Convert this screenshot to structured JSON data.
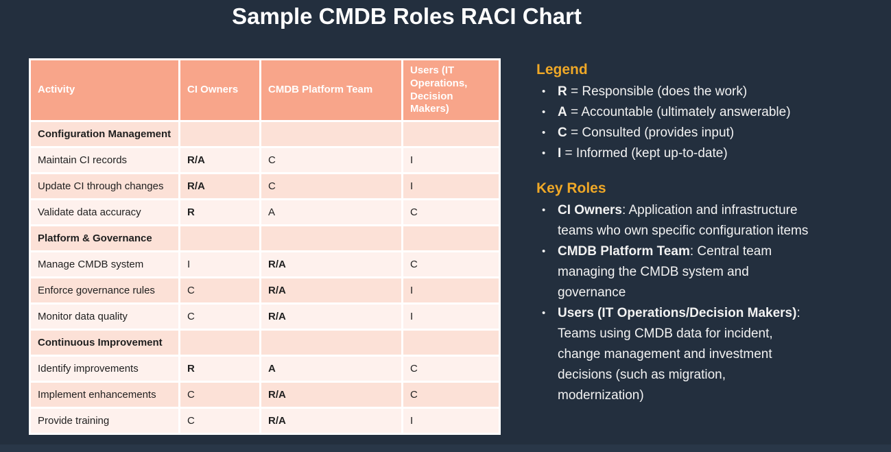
{
  "title": "Sample CMDB Roles RACI Chart",
  "colors": {
    "background": "#232f3e",
    "table_header_bg": "#f8a58a",
    "row_dark": "#fce1d7",
    "row_light": "#fef1ed",
    "table_border": "#ffffff",
    "header_text": "#ffffff",
    "body_text": "#1f1f1f",
    "accent_heading": "#efa827",
    "panel_text": "#f2f2f2"
  },
  "table": {
    "headers": [
      "Activity",
      "CI Owners",
      "CMDB Platform Team",
      "Users (IT Operations, Decision Makers)"
    ],
    "rows": [
      {
        "activity": "Configuration Management",
        "section": true,
        "cells": [
          {
            "text": "",
            "bold": false
          },
          {
            "text": "",
            "bold": false
          },
          {
            "text": "",
            "bold": false
          }
        ]
      },
      {
        "activity": "Maintain CI records",
        "section": false,
        "cells": [
          {
            "text": "R/A",
            "bold": true
          },
          {
            "text": "C",
            "bold": false
          },
          {
            "text": "I",
            "bold": false
          }
        ]
      },
      {
        "activity": "Update CI through changes",
        "section": false,
        "cells": [
          {
            "text": "R/A",
            "bold": true
          },
          {
            "text": "C",
            "bold": false
          },
          {
            "text": "I",
            "bold": false
          }
        ]
      },
      {
        "activity": "Validate data accuracy",
        "section": false,
        "cells": [
          {
            "text": "R",
            "bold": true
          },
          {
            "text": "A",
            "bold": false
          },
          {
            "text": "C",
            "bold": false
          }
        ]
      },
      {
        "activity": "Platform & Governance",
        "section": true,
        "cells": [
          {
            "text": "",
            "bold": false
          },
          {
            "text": "",
            "bold": false
          },
          {
            "text": "",
            "bold": false
          }
        ]
      },
      {
        "activity": "Manage CMDB system",
        "section": false,
        "cells": [
          {
            "text": "I",
            "bold": false
          },
          {
            "text": "R/A",
            "bold": true
          },
          {
            "text": "C",
            "bold": false
          }
        ]
      },
      {
        "activity": "Enforce governance rules",
        "section": false,
        "cells": [
          {
            "text": "C",
            "bold": false
          },
          {
            "text": "R/A",
            "bold": true
          },
          {
            "text": "I",
            "bold": false
          }
        ]
      },
      {
        "activity": "Monitor data quality",
        "section": false,
        "cells": [
          {
            "text": "C",
            "bold": false
          },
          {
            "text": "R/A",
            "bold": true
          },
          {
            "text": "I",
            "bold": false
          }
        ]
      },
      {
        "activity": "Continuous Improvement",
        "section": true,
        "cells": [
          {
            "text": "",
            "bold": false
          },
          {
            "text": "",
            "bold": false
          },
          {
            "text": "",
            "bold": false
          }
        ]
      },
      {
        "activity": "Identify improvements",
        "section": false,
        "cells": [
          {
            "text": "R",
            "bold": true
          },
          {
            "text": "A",
            "bold": true
          },
          {
            "text": "C",
            "bold": false
          }
        ]
      },
      {
        "activity": "Implement enhancements",
        "section": false,
        "cells": [
          {
            "text": "C",
            "bold": false
          },
          {
            "text": "R/A",
            "bold": true
          },
          {
            "text": "C",
            "bold": false
          }
        ]
      },
      {
        "activity": "Provide training",
        "section": false,
        "cells": [
          {
            "text": "C",
            "bold": false
          },
          {
            "text": "R/A",
            "bold": true
          },
          {
            "text": "I",
            "bold": false
          }
        ]
      }
    ]
  },
  "legend": {
    "heading": "Legend",
    "bullet": "•",
    "items": [
      {
        "term": "R",
        "rest": " = Responsible (does the work)"
      },
      {
        "term": "A",
        "rest": " = Accountable (ultimately answerable)"
      },
      {
        "term": "C",
        "rest": " = Consulted (provides input)"
      },
      {
        "term": "I",
        "rest": " = Informed (kept up-to-date)"
      }
    ]
  },
  "key_roles": {
    "heading": "Key Roles",
    "bullet": "•",
    "items": [
      {
        "term": "CI Owners",
        "rest": ": Application and infrastructure teams who own specific configuration items"
      },
      {
        "term": "CMDB Platform Team",
        "rest": ": Central team managing the CMDB system and governance"
      },
      {
        "term": "Users (IT Operations/Decision Makers)",
        "rest": ": Teams using CMDB data for incident, change management and investment decisions (such as migration, modernization)"
      }
    ]
  }
}
